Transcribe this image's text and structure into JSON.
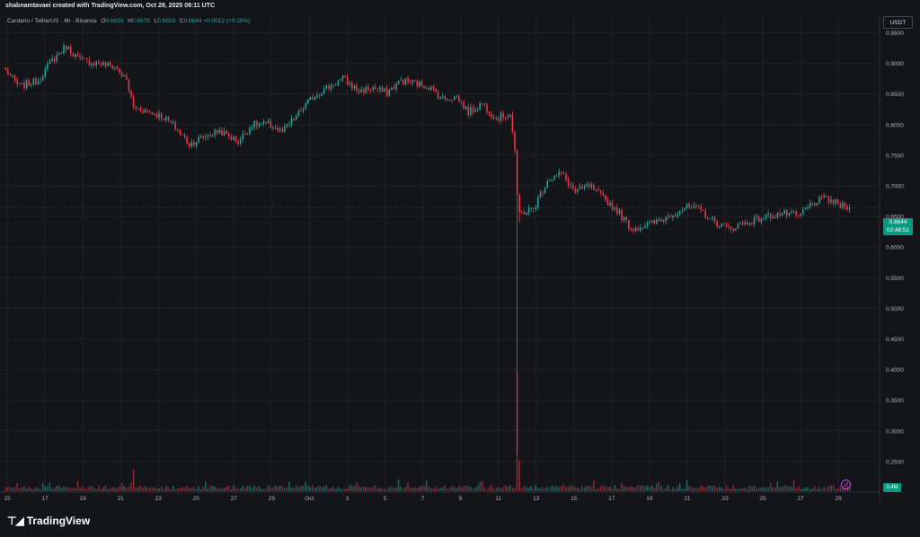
{
  "header": {
    "caption": "shabnamtavaei created with TradingView.com, Oct 28, 2025 09:11 UTC"
  },
  "legend": {
    "symbol": "Cardano / TetherUS · 4h · Binance",
    "o_label": "O",
    "o": "0.6633",
    "h_label": "H",
    "h": "0.6675",
    "l_label": "L",
    "l": "0.6619",
    "c_label": "C",
    "c": "0.6644",
    "change": "+0.0012 (+0.18%)"
  },
  "currency": "USDT",
  "last_price": {
    "price": "0.6644",
    "countdown": "02:48:51"
  },
  "volume_label": "3.4M",
  "brand": "TradingView",
  "colors": {
    "up": "#26a69a",
    "down": "#f23645",
    "background": "#141519",
    "grid": "#1f2129",
    "axis_text": "#b2b5be"
  },
  "chart_data": {
    "type": "candlestick",
    "title": "Cardano / TetherUS · 4h · Binance",
    "ylim": [
      0.2,
      0.98
    ],
    "grid": true,
    "y_ticks": [
      "0.9500",
      "0.9000",
      "0.8500",
      "0.8000",
      "0.7500",
      "0.7000",
      "0.6500",
      "0.6000",
      "0.5500",
      "0.5000",
      "0.4500",
      "0.4000",
      "0.3500",
      "0.3000",
      "0.2500"
    ],
    "x_ticks": [
      "15",
      "17",
      "19",
      "21",
      "23",
      "25",
      "27",
      "29",
      "Oct",
      "3",
      "5",
      "7",
      "9",
      "11",
      "13",
      "15",
      "17",
      "19",
      "21",
      "23",
      "25",
      "27",
      "29"
    ],
    "anchors": [
      [
        0,
        0.888
      ],
      [
        6,
        0.862
      ],
      [
        14,
        0.872
      ],
      [
        20,
        0.905
      ],
      [
        26,
        0.928
      ],
      [
        32,
        0.905
      ],
      [
        40,
        0.9
      ],
      [
        47,
        0.895
      ],
      [
        52,
        0.872
      ],
      [
        55,
        0.828
      ],
      [
        61,
        0.822
      ],
      [
        68,
        0.812
      ],
      [
        73,
        0.795
      ],
      [
        79,
        0.768
      ],
      [
        86,
        0.782
      ],
      [
        92,
        0.79
      ],
      [
        100,
        0.772
      ],
      [
        106,
        0.8
      ],
      [
        113,
        0.8
      ],
      [
        119,
        0.788
      ],
      [
        126,
        0.818
      ],
      [
        132,
        0.845
      ],
      [
        139,
        0.862
      ],
      [
        145,
        0.875
      ],
      [
        152,
        0.855
      ],
      [
        158,
        0.86
      ],
      [
        164,
        0.852
      ],
      [
        170,
        0.872
      ],
      [
        176,
        0.868
      ],
      [
        182,
        0.862
      ],
      [
        188,
        0.842
      ],
      [
        194,
        0.845
      ],
      [
        199,
        0.82
      ],
      [
        205,
        0.835
      ],
      [
        211,
        0.81
      ],
      [
        217,
        0.818
      ],
      [
        219,
        0.758
      ],
      [
        220,
        0.68
      ],
      [
        221,
        0.655
      ],
      [
        227,
        0.662
      ],
      [
        233,
        0.71
      ],
      [
        239,
        0.72
      ],
      [
        245,
        0.69
      ],
      [
        251,
        0.7
      ],
      [
        257,
        0.68
      ],
      [
        263,
        0.66
      ],
      [
        269,
        0.63
      ],
      [
        275,
        0.635
      ],
      [
        281,
        0.642
      ],
      [
        287,
        0.655
      ],
      [
        293,
        0.665
      ],
      [
        299,
        0.66
      ],
      [
        305,
        0.64
      ],
      [
        311,
        0.63
      ],
      [
        317,
        0.638
      ],
      [
        323,
        0.645
      ],
      [
        329,
        0.652
      ],
      [
        335,
        0.655
      ],
      [
        341,
        0.65
      ],
      [
        347,
        0.672
      ],
      [
        353,
        0.68
      ],
      [
        359,
        0.668
      ],
      [
        363,
        0.6644
      ]
    ],
    "last_close": 0.6644
  }
}
